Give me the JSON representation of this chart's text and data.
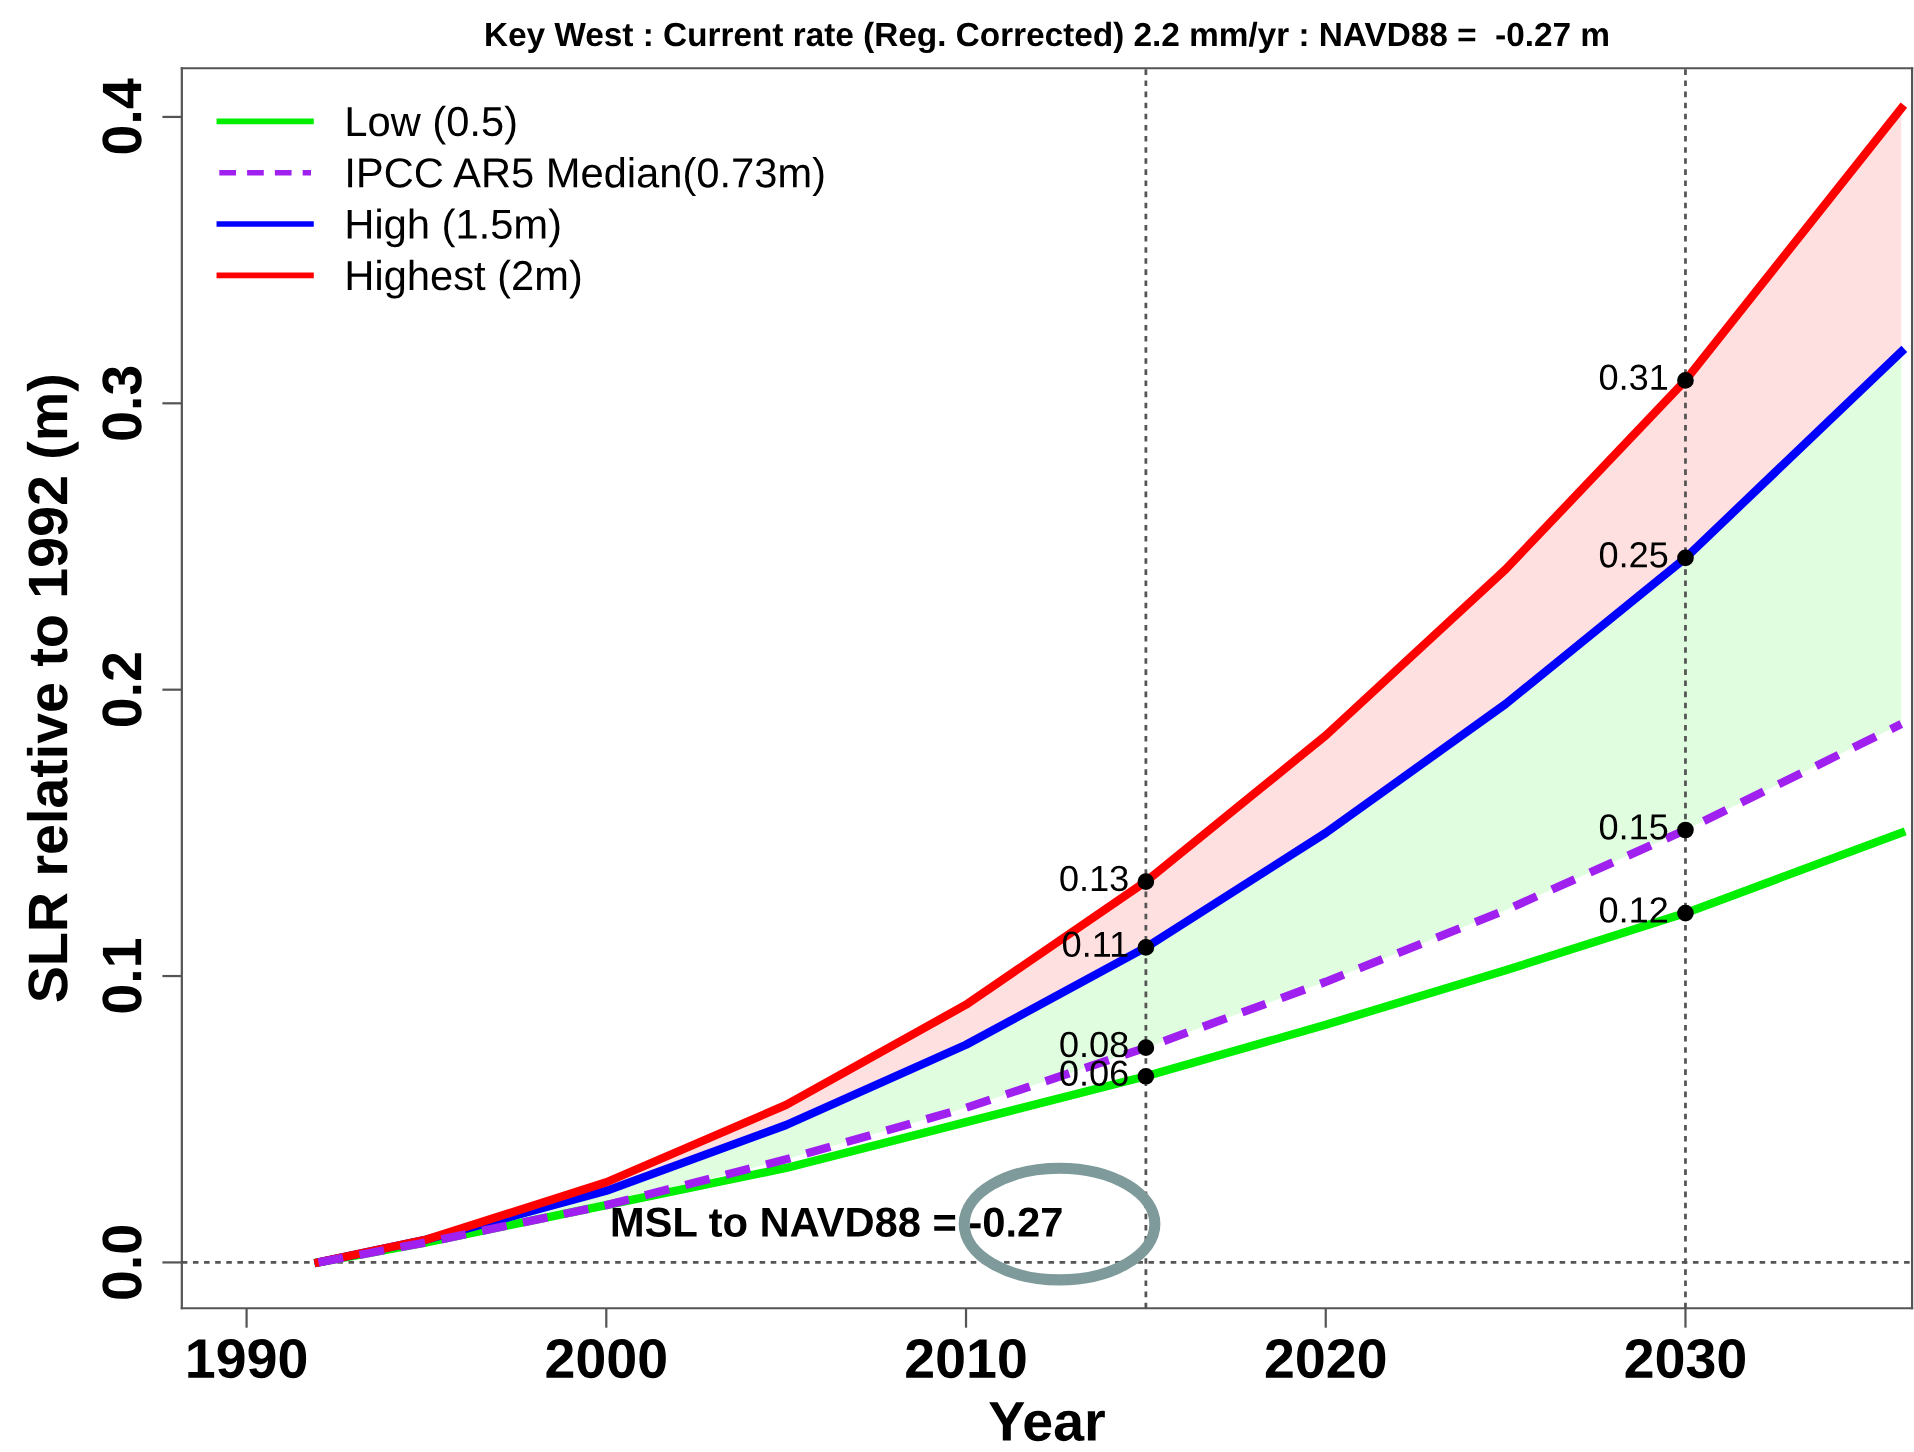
{
  "chart_data": {
    "type": "line",
    "title": "Key West : Current rate (Reg. Corrected) 2.2 mm/yr : NAVD88 =  -0.27 m",
    "xlabel": "Year",
    "ylabel": "SLR relative to 1992 (m)",
    "x": [
      1992,
      1995,
      2000,
      2005,
      2010,
      2015,
      2020,
      2025,
      2030,
      2036
    ],
    "series": [
      {
        "name": "Low (0.5)",
        "color": "#00ee00",
        "line_style": "solid",
        "values": [
          0,
          0.007,
          0.02,
          0.033,
          0.049,
          0.065,
          0.083,
          0.102,
          0.122,
          0.15
        ],
        "value_labels": [
          null,
          null,
          null,
          null,
          null,
          "0.06",
          null,
          null,
          "0.12",
          null
        ],
        "lower": [
          0,
          0.007,
          0.02,
          0.036,
          0.054,
          0.075,
          0.098,
          0.123,
          0.151,
          0.188
        ],
        "upper": [
          0,
          0.008,
          0.025,
          0.048,
          0.076,
          0.11,
          0.15,
          0.195,
          0.246,
          0.318
        ]
      },
      {
        "name": "IPCC AR5 Median(0.73m)",
        "color": "#a020f0",
        "line_style": "dashed",
        "values": [
          0,
          0.007,
          0.02,
          0.036,
          0.054,
          0.075,
          0.098,
          0.123,
          0.151,
          0.188
        ],
        "value_labels": [
          null,
          null,
          null,
          null,
          null,
          "0.08",
          null,
          null,
          "0.15",
          null
        ]
      },
      {
        "name": "High (1.5m)",
        "color": "#0000ff",
        "line_style": "solid",
        "values": [
          0,
          0.008,
          0.025,
          0.048,
          0.076,
          0.11,
          0.15,
          0.195,
          0.246,
          0.318
        ],
        "value_labels": [
          null,
          null,
          null,
          null,
          null,
          "0.11",
          null,
          null,
          "0.25",
          null
        ]
      },
      {
        "name": "Highest (2m)",
        "color": "#ff0000",
        "line_style": "solid",
        "values": [
          0,
          0.008,
          0.028,
          0.055,
          0.09,
          0.133,
          0.184,
          0.242,
          0.308,
          0.403
        ],
        "value_labels": [
          null,
          null,
          null,
          null,
          null,
          "0.13",
          null,
          null,
          "0.31",
          null
        ],
        "lower": [
          0,
          0.008,
          0.025,
          0.048,
          0.076,
          0.11,
          0.15,
          0.195,
          0.246,
          0.318
        ],
        "upper": [
          0,
          0.008,
          0.028,
          0.055,
          0.09,
          0.133,
          0.184,
          0.242,
          0.308,
          0.403
        ]
      }
    ],
    "xlim": [
      1988.2,
      2036.3
    ],
    "xticks": [
      1990,
      2000,
      2010,
      2020,
      2030
    ],
    "ylim": [
      -0.016,
      0.417
    ],
    "yticks": [
      {
        "value": 0,
        "label": "0.0"
      },
      0.1,
      0.2,
      0.3,
      0.4
    ],
    "ref_lines": [
      {
        "axis": "x",
        "value": 2015,
        "color": "#555555",
        "line_style": "dotted"
      },
      {
        "axis": "x",
        "value": 2030,
        "color": "#555555",
        "line_style": "dotted"
      },
      {
        "axis": "y",
        "value": 0,
        "color": "#555555",
        "line_style": "dotted"
      }
    ],
    "annotations": [
      "MSL to NAVD88 = -0.27"
    ],
    "legend": "top left",
    "grid": false
  }
}
